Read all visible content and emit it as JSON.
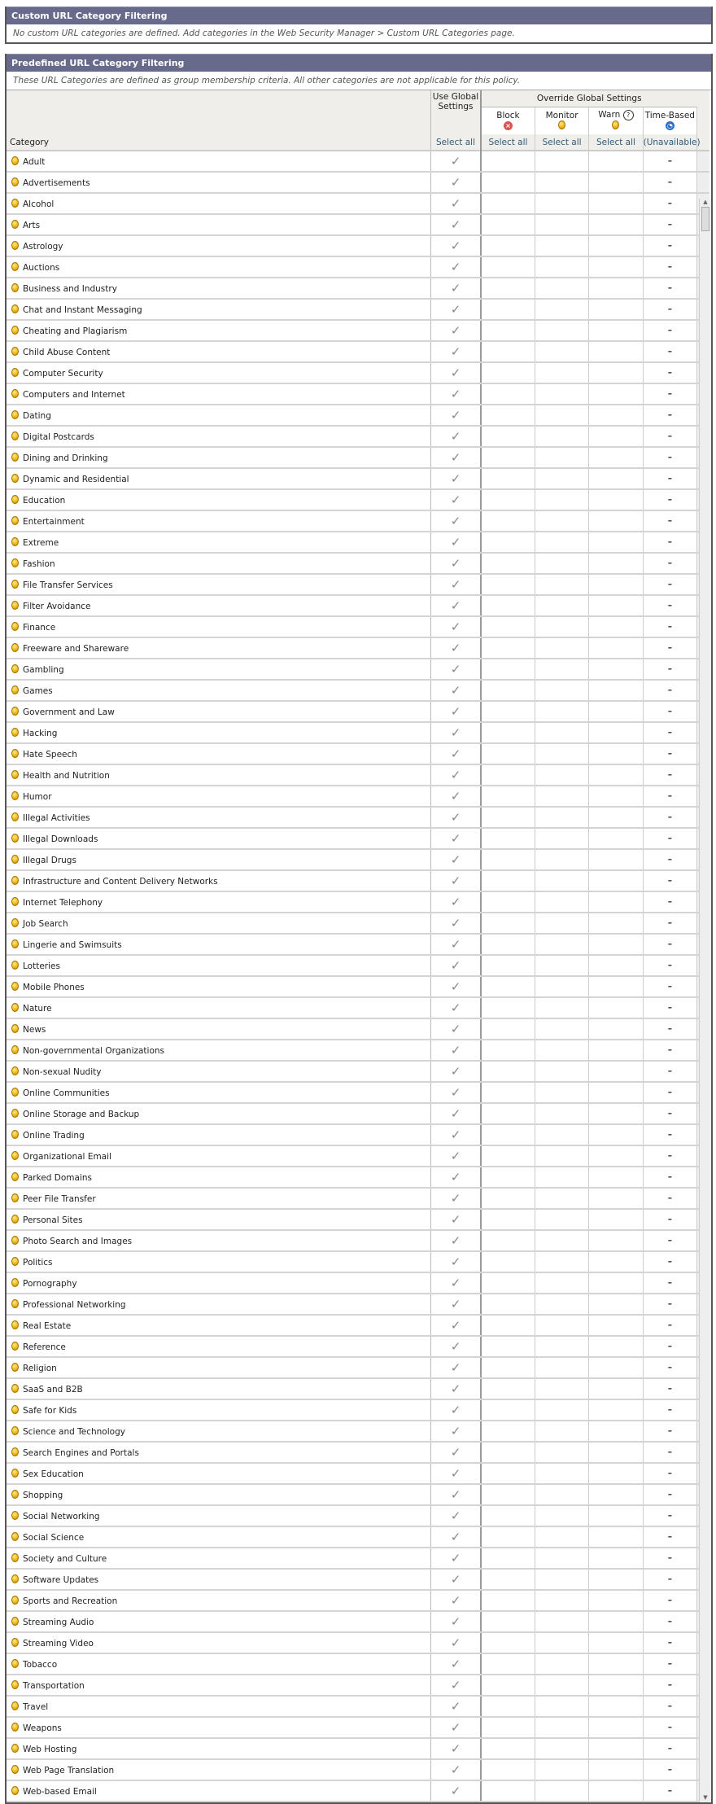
{
  "custom": {
    "title": "Custom URL Category Filtering",
    "message": "No custom URL categories are defined. Add categories in the Web Security Manager > Custom URL Categories page."
  },
  "predefined": {
    "title": "Predefined URL Category Filtering",
    "message": "These URL Categories are defined as group membership criteria. All other categories are not applicable for this policy.",
    "headers": {
      "category": "Category",
      "use_global": "Use Global Settings",
      "override": "Override Global Settings",
      "block": "Block",
      "monitor": "Monitor",
      "warn": "Warn",
      "warn_help": "?",
      "time_based": "Time-Based",
      "select_all": "Select all",
      "unavailable": "(Unavailable)"
    },
    "icons": {
      "category": "monitor-yellow-icon",
      "block": "block-red-x-icon",
      "monitor": "monitor-yellow-icon",
      "warn": "warn-yellow-exclamation-icon",
      "time_based": "clock-blue-icon",
      "use_global": "checkmark-icon",
      "time_value": "dash"
    },
    "colors": {
      "header_bar": "#676a8b",
      "select_link": "#2c5c7c"
    },
    "check_symbol": "✓",
    "dash_symbol": "–",
    "categories": [
      "Adult",
      "Advertisements",
      "Alcohol",
      "Arts",
      "Astrology",
      "Auctions",
      "Business and Industry",
      "Chat and Instant Messaging",
      "Cheating and Plagiarism",
      "Child Abuse Content",
      "Computer Security",
      "Computers and Internet",
      "Dating",
      "Digital Postcards",
      "Dining and Drinking",
      "Dynamic and Residential",
      "Education",
      "Entertainment",
      "Extreme",
      "Fashion",
      "File Transfer Services",
      "Filter Avoidance",
      "Finance",
      "Freeware and Shareware",
      "Gambling",
      "Games",
      "Government and Law",
      "Hacking",
      "Hate Speech",
      "Health and Nutrition",
      "Humor",
      "Illegal Activities",
      "Illegal Downloads",
      "Illegal Drugs",
      "Infrastructure and Content Delivery Networks",
      "Internet Telephony",
      "Job Search",
      "Lingerie and Swimsuits",
      "Lotteries",
      "Mobile Phones",
      "Nature",
      "News",
      "Non-governmental Organizations",
      "Non-sexual Nudity",
      "Online Communities",
      "Online Storage and Backup",
      "Online Trading",
      "Organizational Email",
      "Parked Domains",
      "Peer File Transfer",
      "Personal Sites",
      "Photo Search and Images",
      "Politics",
      "Pornography",
      "Professional Networking",
      "Real Estate",
      "Reference",
      "Religion",
      "SaaS and B2B",
      "Safe for Kids",
      "Science and Technology",
      "Search Engines and Portals",
      "Sex Education",
      "Shopping",
      "Social Networking",
      "Social Science",
      "Society and Culture",
      "Software Updates",
      "Sports and Recreation",
      "Streaming Audio",
      "Streaming Video",
      "Tobacco",
      "Transportation",
      "Travel",
      "Weapons",
      "Web Hosting",
      "Web Page Translation",
      "Web-based Email"
    ]
  }
}
